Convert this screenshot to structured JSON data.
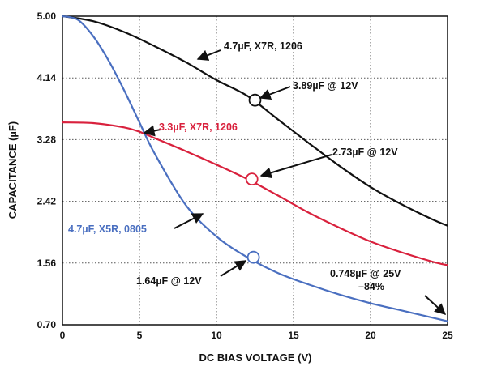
{
  "chart_data": {
    "type": "line",
    "title": "",
    "xlabel": "DC BIAS VOLTAGE (V)",
    "ylabel": "CAPACITANCE (µF)",
    "xlim": [
      0,
      25
    ],
    "ylim": [
      0.7,
      5.0
    ],
    "x_ticks": [
      "0",
      "5",
      "10",
      "15",
      "20",
      "25"
    ],
    "y_ticks": [
      "0.70",
      "1.56",
      "2.42",
      "3.28",
      "4.14",
      "5.00"
    ],
    "grid": "dotted",
    "series": [
      {
        "name": "4.7µF, X7R, 1206",
        "color": "#111111",
        "x": [
          0,
          2,
          4,
          6,
          8,
          10,
          12,
          14,
          16,
          18,
          20,
          22,
          24,
          25
        ],
        "y": [
          5.0,
          4.93,
          4.78,
          4.58,
          4.36,
          4.11,
          3.89,
          3.56,
          3.23,
          2.91,
          2.62,
          2.38,
          2.17,
          2.08
        ]
      },
      {
        "name": "3.3µF, X7R, 1206",
        "color": "#d9213d",
        "x": [
          0,
          2,
          4,
          5,
          6,
          8,
          10,
          12,
          14,
          16,
          18,
          20,
          22,
          24,
          25
        ],
        "y": [
          3.52,
          3.51,
          3.45,
          3.39,
          3.3,
          3.12,
          2.93,
          2.73,
          2.5,
          2.26,
          2.05,
          1.86,
          1.71,
          1.58,
          1.53
        ]
      },
      {
        "name": "4.7µF, X5R, 0805",
        "color": "#4a6fc0",
        "x": [
          0,
          1,
          2,
          3,
          4,
          5,
          6,
          8,
          10,
          12,
          14,
          16,
          18,
          20,
          22,
          24,
          25
        ],
        "y": [
          5.0,
          4.95,
          4.72,
          4.38,
          3.97,
          3.52,
          3.08,
          2.37,
          1.93,
          1.64,
          1.42,
          1.26,
          1.12,
          1.0,
          0.9,
          0.8,
          0.748
        ]
      }
    ],
    "annotations": {
      "black_label": "4.7µF, X7R, 1206",
      "black_point": "3.89µF @ 12V",
      "red_label": "3.3µF, X7R, 1206",
      "red_point": "2.73µF @ 12V",
      "blue_label": "4.7µF, X5R, 0805",
      "blue_point": "1.64µF @ 12V",
      "end_point_line1": "0.748µF @ 25V",
      "end_point_line2": "–84%"
    },
    "markers": [
      {
        "series": 0,
        "x": 12.5,
        "y": 3.83
      },
      {
        "series": 1,
        "x": 12.3,
        "y": 2.73
      },
      {
        "series": 2,
        "x": 12.4,
        "y": 1.64
      }
    ]
  }
}
